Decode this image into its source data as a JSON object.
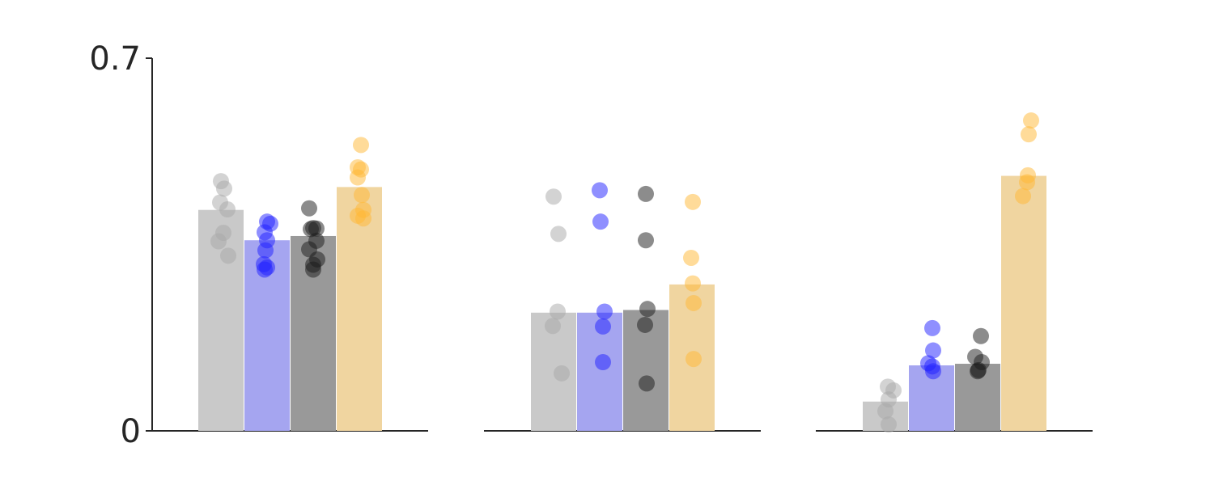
{
  "chart_data": {
    "type": "bar",
    "ylim": [
      0,
      0.7
    ],
    "ytick_labels": [
      "0",
      "0.7"
    ],
    "ytick_values": [
      0,
      0.7
    ],
    "grid": false,
    "legend": "none",
    "title": "",
    "xlabel": "",
    "ylabel": "",
    "groups": [
      {
        "bars": [
          {
            "color": "#c9c9c9",
            "point_color": "#a8a8a8",
            "value": 0.415,
            "points": [
              0.469,
              0.455,
              0.429,
              0.416,
              0.372,
              0.356,
              0.329
            ]
          },
          {
            "color": "#a5a5f0",
            "point_color": "#1f1fff",
            "value": 0.358,
            "points": [
              0.393,
              0.389,
              0.373,
              0.358,
              0.339,
              0.313,
              0.307,
              0.303
            ]
          },
          {
            "color": "#999999",
            "point_color": "#1a1a1a",
            "value": 0.366,
            "points": [
              0.418,
              0.381,
              0.38,
              0.379,
              0.357,
              0.341,
              0.322,
              0.312,
              0.303
            ]
          },
          {
            "color": "#f0d5a0",
            "point_color": "#ffb733",
            "value": 0.458,
            "points": [
              0.537,
              0.495,
              0.491,
              0.476,
              0.443,
              0.415,
              0.404,
              0.399
            ]
          }
        ]
      },
      {
        "bars": [
          {
            "color": "#c9c9c9",
            "point_color": "#a8a8a8",
            "value": 0.222,
            "points": [
              0.44,
              0.37,
              0.224,
              0.197,
              0.108
            ]
          },
          {
            "color": "#a5a5f0",
            "point_color": "#1f1fff",
            "value": 0.222,
            "points": [
              0.452,
              0.393,
              0.224,
              0.196,
              0.129
            ]
          },
          {
            "color": "#999999",
            "point_color": "#1a1a1a",
            "value": 0.227,
            "points": [
              0.445,
              0.358,
              0.229,
              0.199,
              0.089
            ]
          },
          {
            "color": "#f0d5a0",
            "point_color": "#ffb733",
            "value": 0.275,
            "points": [
              0.43,
              0.325,
              0.277,
              0.24,
              0.135
            ]
          }
        ]
      },
      {
        "bars": [
          {
            "color": "#c9c9c9",
            "point_color": "#a8a8a8",
            "value": 0.055,
            "points": [
              0.083,
              0.076,
              0.059,
              0.037,
              0.012
            ]
          },
          {
            "color": "#a5a5f0",
            "point_color": "#1f1fff",
            "value": 0.123,
            "points": [
              0.193,
              0.151,
              0.127,
              0.121,
              0.112
            ]
          },
          {
            "color": "#999999",
            "point_color": "#1a1a1a",
            "value": 0.126,
            "points": [
              0.178,
              0.139,
              0.129,
              0.114,
              0.112
            ]
          },
          {
            "color": "#f0d5a0",
            "point_color": "#ffb733",
            "value": 0.479,
            "points": [
              0.583,
              0.557,
              0.48,
              0.467,
              0.441
            ]
          }
        ]
      }
    ]
  }
}
